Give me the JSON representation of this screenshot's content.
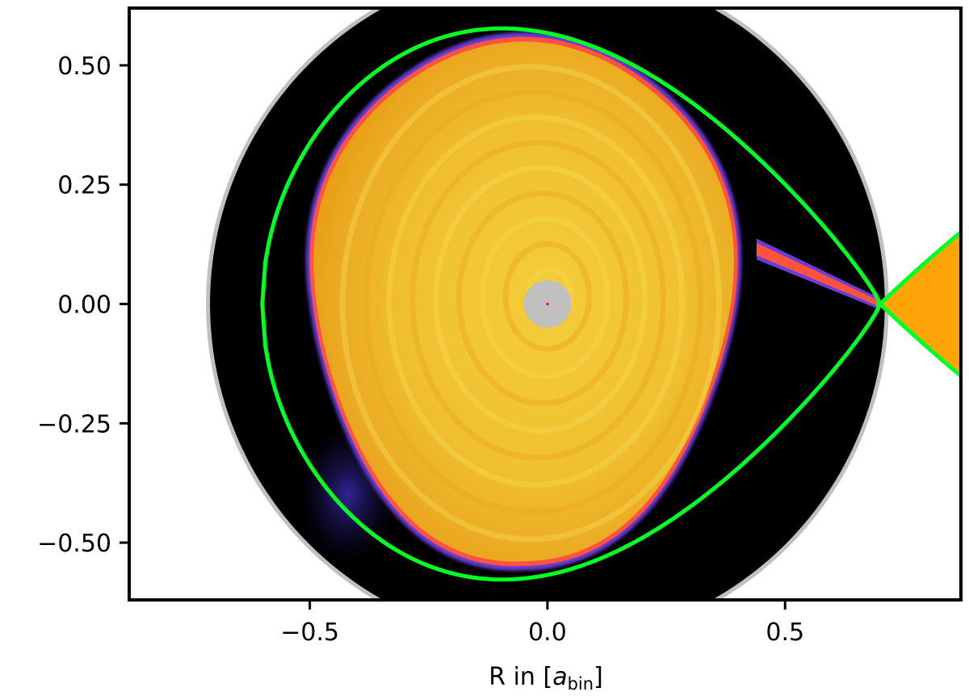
{
  "chart_data": {
    "type": "heatmap",
    "title": "",
    "xlabel": "R in [",
    "xlabel_var": "a",
    "xlabel_sub": "bin",
    "xlabel_close": "]",
    "ylabel": "",
    "xlim": [
      -0.88,
      0.87
    ],
    "ylim": [
      -0.62,
      0.62
    ],
    "grid": false,
    "x_ticks": [
      {
        "value": -0.5,
        "label": "−0.5"
      },
      {
        "value": 0.0,
        "label": "0.0"
      },
      {
        "value": 0.5,
        "label": "0.5"
      }
    ],
    "y_ticks": [
      {
        "value": 0.5,
        "label": "0.50"
      },
      {
        "value": 0.25,
        "label": "0.25"
      },
      {
        "value": 0.0,
        "label": "0.00"
      },
      {
        "value": -0.25,
        "label": "−0.25"
      },
      {
        "value": -0.5,
        "label": "−0.50"
      }
    ],
    "simulation_domain": {
      "center": [
        0.0,
        0.0
      ],
      "radius": 0.71
    },
    "inner_boundary": {
      "center": [
        0.0,
        0.0
      ],
      "radius": 0.05
    },
    "roche_lobe_L1": [
      0.7,
      0.0
    ],
    "accretion_disc": {
      "center": [
        -0.05,
        0.0
      ],
      "semi_x": 0.44,
      "semi_y": 0.55
    },
    "colors": {
      "background": "#000000",
      "domain_edge": "#c0c0c0",
      "roche_lobe": "#00ff22",
      "disc_outer": "#e5a010",
      "disc_inner": "#f2c832",
      "disc_edge": "#6a3cd8",
      "stream": "#ff5340",
      "companion": "#ffa50a",
      "inner_boundary": "#c0c0c0",
      "center_point": "#ff0000"
    }
  }
}
